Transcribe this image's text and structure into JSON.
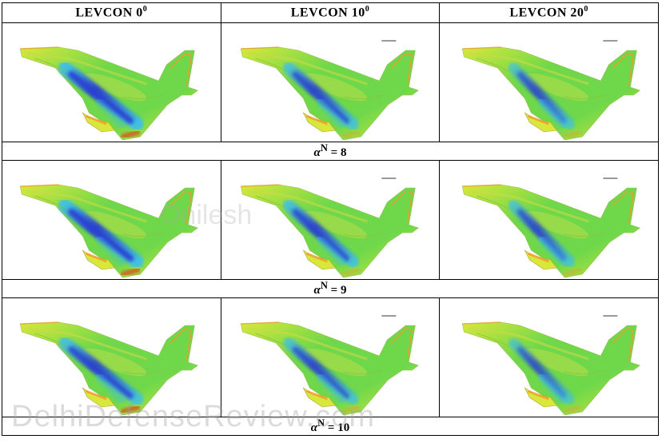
{
  "columns": [
    {
      "label": "LEVCON 0",
      "deg": "0"
    },
    {
      "label": "LEVCON 10",
      "deg": "0"
    },
    {
      "label": "LEVCON 20",
      "deg": "0"
    }
  ],
  "rows": [
    {
      "alpha_symbol": "α",
      "alpha_sup": "N",
      "alpha_value": " = 8"
    },
    {
      "alpha_symbol": "α",
      "alpha_sup": "N",
      "alpha_value": " = 9"
    },
    {
      "alpha_symbol": "α",
      "alpha_sup": "N",
      "alpha_value": " = 10"
    }
  ],
  "watermark": "DelhiDefenseReview.com",
  "watermark_center": "Onilesh",
  "colors": {
    "body_green": "#6fd84a",
    "body_yellow": "#d8e83a",
    "edge_orange": "#f39a2a",
    "edge_red": "#e3461f",
    "vortex_blue": "#2a3fd0",
    "vortex_cyan": "#3ec0e8"
  }
}
